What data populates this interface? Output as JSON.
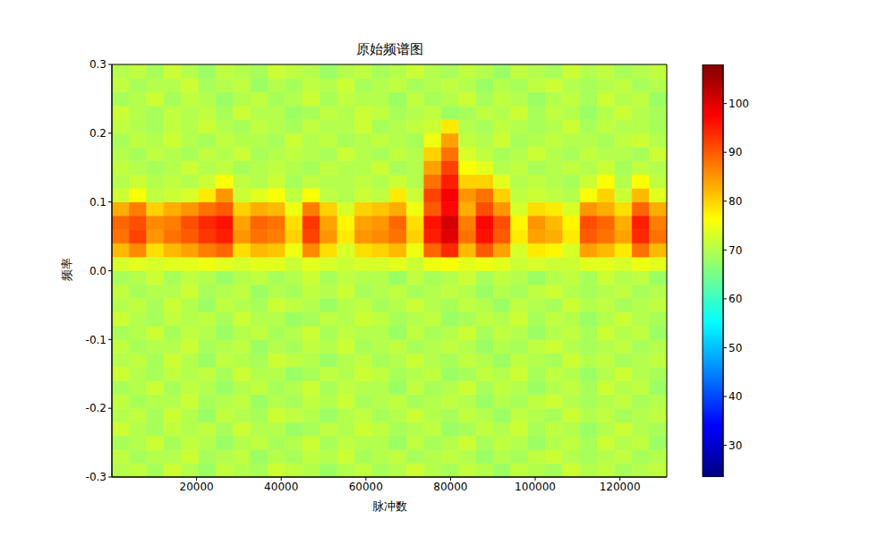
{
  "chart_data": {
    "type": "heatmap",
    "title": "原始频谱图",
    "x_label": "脉冲数",
    "y_label": "频率",
    "xlim": [
      0,
      131072
    ],
    "xticks": [
      20000,
      40000,
      60000,
      80000,
      100000,
      120000
    ],
    "ylim": [
      -0.3,
      0.3
    ],
    "yticks": [
      -0.3,
      -0.2,
      -0.1,
      {
        "value": 0,
        "label": "0.0"
      },
      0.1,
      0.2,
      0.3
    ],
    "x_bins": [
      0,
      4096,
      8192,
      12288,
      16384,
      20480,
      24576,
      28672,
      32768,
      36864,
      40960,
      45056,
      49152,
      53248,
      57344,
      61440,
      65536,
      69632,
      73728,
      77824,
      81920,
      86016,
      90112,
      94208,
      98304,
      102400,
      106496,
      110592,
      114688,
      118784,
      122880,
      126976,
      131072
    ],
    "y_bins": [
      -0.3,
      -0.28,
      -0.26,
      -0.24,
      -0.22,
      -0.2,
      -0.18,
      -0.16,
      -0.14,
      -0.12,
      -0.1,
      -0.08,
      -0.06,
      -0.04,
      -0.02,
      0,
      0.02,
      0.04,
      0.06,
      0.08,
      0.1,
      0.12,
      0.14,
      0.16,
      0.18,
      0.2,
      0.22,
      0.24,
      0.26,
      0.28,
      0.3
    ],
    "cells": [
      [
        70,
        71,
        69,
        72,
        70,
        68,
        71,
        70,
        69,
        72,
        71,
        70,
        68,
        70,
        71,
        69,
        70,
        72,
        70,
        69,
        71,
        70,
        68,
        71,
        70,
        69,
        72,
        70,
        71,
        69,
        70,
        71
      ],
      [
        71,
        69,
        70,
        70,
        72,
        69,
        70,
        71,
        68,
        70,
        69,
        71,
        70,
        72,
        69,
        70,
        71,
        69,
        70,
        71,
        70,
        68,
        70,
        69,
        71,
        72,
        70,
        69,
        70,
        71,
        69,
        70
      ],
      [
        69,
        70,
        72,
        69,
        71,
        70,
        68,
        70,
        71,
        69,
        70,
        72,
        69,
        71,
        70,
        70,
        68,
        71,
        69,
        70,
        72,
        69,
        71,
        70,
        68,
        70,
        71,
        69,
        72,
        70,
        71,
        68
      ],
      [
        72,
        70,
        69,
        71,
        70,
        71,
        69,
        72,
        70,
        70,
        68,
        69,
        71,
        70,
        72,
        71,
        69,
        70,
        71,
        68,
        69,
        71,
        70,
        72,
        69,
        71,
        70,
        68,
        70,
        72,
        70,
        69
      ],
      [
        70,
        71,
        69,
        72,
        70,
        68,
        71,
        70,
        69,
        72,
        71,
        70,
        68,
        70,
        71,
        69,
        70,
        72,
        70,
        69,
        71,
        70,
        68,
        71,
        70,
        69,
        72,
        70,
        71,
        69,
        70,
        71
      ],
      [
        71,
        69,
        70,
        70,
        72,
        69,
        70,
        71,
        68,
        70,
        69,
        71,
        70,
        72,
        69,
        70,
        71,
        69,
        70,
        71,
        70,
        68,
        70,
        69,
        71,
        72,
        70,
        69,
        70,
        71,
        69,
        70
      ],
      [
        69,
        70,
        72,
        69,
        71,
        70,
        68,
        70,
        71,
        69,
        70,
        72,
        69,
        71,
        70,
        70,
        68,
        71,
        69,
        70,
        72,
        69,
        71,
        70,
        68,
        70,
        71,
        69,
        72,
        70,
        71,
        68
      ],
      [
        72,
        70,
        69,
        71,
        70,
        71,
        69,
        72,
        70,
        70,
        68,
        69,
        71,
        70,
        72,
        71,
        69,
        70,
        71,
        68,
        69,
        71,
        70,
        72,
        69,
        71,
        70,
        68,
        70,
        72,
        70,
        69
      ],
      [
        70,
        71,
        69,
        72,
        70,
        68,
        71,
        70,
        69,
        72,
        71,
        70,
        68,
        70,
        71,
        69,
        70,
        72,
        70,
        69,
        71,
        70,
        68,
        71,
        70,
        69,
        72,
        70,
        71,
        69,
        70,
        71
      ],
      [
        71,
        69,
        70,
        70,
        72,
        69,
        70,
        71,
        68,
        70,
        69,
        71,
        70,
        72,
        69,
        70,
        71,
        69,
        70,
        71,
        70,
        68,
        70,
        69,
        71,
        72,
        70,
        69,
        70,
        71,
        69,
        70
      ],
      [
        69,
        70,
        72,
        69,
        71,
        70,
        68,
        70,
        71,
        69,
        70,
        72,
        69,
        71,
        70,
        70,
        68,
        71,
        69,
        70,
        72,
        69,
        71,
        70,
        68,
        70,
        71,
        69,
        72,
        70,
        71,
        68
      ],
      [
        72,
        70,
        69,
        71,
        70,
        71,
        69,
        72,
        70,
        70,
        68,
        69,
        71,
        70,
        72,
        71,
        69,
        70,
        71,
        68,
        69,
        71,
        70,
        72,
        69,
        71,
        70,
        68,
        70,
        72,
        70,
        69
      ],
      [
        70,
        71,
        69,
        72,
        70,
        68,
        71,
        70,
        69,
        72,
        71,
        70,
        68,
        70,
        71,
        69,
        70,
        72,
        70,
        69,
        71,
        70,
        68,
        71,
        70,
        69,
        72,
        70,
        71,
        69,
        70,
        71
      ],
      [
        71,
        69,
        70,
        70,
        72,
        69,
        70,
        71,
        68,
        70,
        69,
        71,
        70,
        72,
        69,
        70,
        71,
        69,
        70,
        71,
        70,
        68,
        70,
        69,
        71,
        72,
        70,
        69,
        70,
        71,
        69,
        70
      ],
      [
        69,
        70,
        72,
        69,
        71,
        70,
        68,
        70,
        71,
        69,
        70,
        72,
        69,
        71,
        70,
        70,
        68,
        71,
        69,
        70,
        72,
        69,
        71,
        70,
        68,
        70,
        71,
        69,
        72,
        70,
        71,
        68
      ],
      [
        73,
        74,
        73,
        74,
        74,
        75,
        74,
        73,
        74,
        74,
        72,
        74,
        73,
        72,
        73,
        73,
        74,
        72,
        75,
        76,
        74,
        75,
        74,
        72,
        73,
        72,
        72,
        74,
        74,
        73,
        75,
        74
      ],
      [
        82,
        86,
        79,
        82,
        84,
        87,
        89,
        79,
        82,
        81,
        75,
        86,
        79,
        73,
        79,
        80,
        82,
        75,
        89,
        94,
        82,
        90,
        84,
        73,
        78,
        77,
        73,
        84,
        82,
        78,
        88,
        82
      ],
      [
        88,
        92,
        85,
        88,
        90,
        93,
        95,
        85,
        88,
        87,
        80,
        92,
        85,
        78,
        85,
        86,
        88,
        80,
        95,
        100,
        88,
        96,
        90,
        78,
        84,
        83,
        78,
        90,
        88,
        84,
        94,
        88
      ],
      [
        89,
        91,
        86,
        87,
        91,
        94,
        96,
        84,
        89,
        88,
        79,
        93,
        84,
        77,
        84,
        85,
        89,
        79,
        96,
        101,
        87,
        97,
        91,
        77,
        85,
        82,
        77,
        91,
        89,
        83,
        95,
        87
      ],
      [
        83,
        87,
        80,
        83,
        85,
        88,
        90,
        80,
        83,
        82,
        75,
        87,
        80,
        73,
        80,
        81,
        83,
        75,
        90,
        97,
        83,
        91,
        85,
        73,
        79,
        78,
        73,
        85,
        83,
        79,
        89,
        83
      ],
      [
        72,
        76,
        71,
        72,
        73,
        78,
        85,
        72,
        74,
        76,
        71,
        76,
        71,
        70,
        72,
        71,
        78,
        72,
        92,
        98,
        85,
        88,
        80,
        71,
        72,
        71,
        70,
        76,
        80,
        72,
        82,
        74
      ],
      [
        70,
        72,
        70,
        71,
        70,
        72,
        76,
        71,
        70,
        72,
        69,
        71,
        70,
        70,
        71,
        70,
        72,
        70,
        88,
        95,
        80,
        80,
        74,
        70,
        71,
        70,
        69,
        72,
        76,
        70,
        76,
        71
      ],
      [
        71,
        70,
        69,
        70,
        72,
        70,
        71,
        69,
        70,
        71,
        70,
        69,
        71,
        70,
        70,
        72,
        69,
        70,
        84,
        92,
        76,
        74,
        70,
        71,
        69,
        70,
        71,
        70,
        72,
        69,
        71,
        70
      ],
      [
        70,
        69,
        71,
        70,
        69,
        71,
        70,
        72,
        69,
        70,
        71,
        70,
        69,
        72,
        70,
        69,
        71,
        70,
        80,
        88,
        73,
        71,
        69,
        70,
        72,
        70,
        69,
        71,
        70,
        70,
        69,
        72
      ],
      [
        69,
        71,
        70,
        72,
        70,
        69,
        71,
        70,
        70,
        69,
        72,
        70,
        71,
        69,
        70,
        71,
        70,
        69,
        75,
        84,
        71,
        70,
        72,
        69,
        70,
        71,
        70,
        70,
        69,
        71,
        72,
        70
      ],
      [
        71,
        70,
        69,
        71,
        70,
        72,
        70,
        69,
        71,
        70,
        69,
        71,
        70,
        70,
        72,
        69,
        70,
        71,
        72,
        78,
        70,
        69,
        71,
        70,
        69,
        70,
        72,
        69,
        71,
        70,
        70,
        69
      ],
      [
        72,
        70,
        69,
        71,
        70,
        71,
        69,
        72,
        70,
        70,
        68,
        69,
        71,
        70,
        72,
        71,
        69,
        70,
        71,
        68,
        69,
        71,
        70,
        72,
        69,
        71,
        70,
        68,
        70,
        72,
        70,
        69
      ],
      [
        69,
        70,
        72,
        69,
        71,
        70,
        68,
        70,
        71,
        69,
        70,
        72,
        69,
        71,
        70,
        70,
        68,
        71,
        69,
        70,
        72,
        69,
        71,
        70,
        68,
        70,
        71,
        69,
        72,
        70,
        71,
        68
      ],
      [
        71,
        69,
        70,
        70,
        72,
        69,
        70,
        71,
        68,
        70,
        69,
        71,
        70,
        72,
        69,
        70,
        71,
        69,
        70,
        71,
        70,
        68,
        70,
        69,
        71,
        72,
        70,
        69,
        70,
        71,
        69,
        70
      ],
      [
        70,
        71,
        69,
        72,
        70,
        68,
        71,
        70,
        69,
        72,
        71,
        70,
        68,
        70,
        71,
        69,
        70,
        72,
        70,
        69,
        71,
        70,
        68,
        71,
        70,
        69,
        72,
        70,
        71,
        69,
        70,
        71
      ]
    ],
    "colorbar": {
      "range": [
        23.5,
        108
      ],
      "ticks": [
        30,
        40,
        50,
        60,
        70,
        80,
        90,
        100
      ]
    }
  }
}
